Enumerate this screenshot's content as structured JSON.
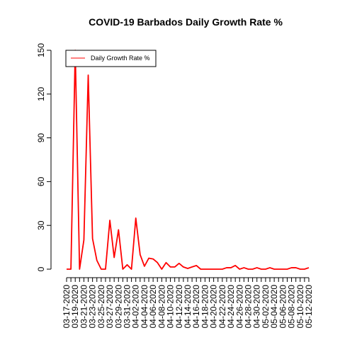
{
  "chart_data": {
    "type": "line",
    "title": "COVID-19 Barbados Daily Growth Rate %",
    "xlabel": "",
    "ylabel": "",
    "ylim": [
      0,
      150
    ],
    "yticks": [
      "0",
      "30",
      "60",
      "90",
      "120",
      "150"
    ],
    "grid": false,
    "legend_position": "top-left",
    "x_tick_labels": [
      "03-17-2020",
      "03-19-2020",
      "03-21-2020",
      "03-23-2020",
      "03-25-2020",
      "03-27-2020",
      "03-29-2020",
      "03-31-2020",
      "04-02-2020",
      "04-04-2020",
      "04-06-2020",
      "04-08-2020",
      "04-10-2020",
      "04-12-2020",
      "04-14-2020",
      "04-16-2020",
      "04-18-2020",
      "04-20-2020",
      "04-22-2020",
      "04-24-2020",
      "04-26-2020",
      "04-28-2020",
      "04-30-2020",
      "05-02-2020",
      "05-04-2020",
      "05-06-2020",
      "05-08-2020",
      "05-10-2020",
      "05-12-2020"
    ],
    "series": [
      {
        "name": "Daily Growth Rate %",
        "color": "#ff0000",
        "x": [
          "03-17-2020",
          "03-18-2020",
          "03-19-2020",
          "03-20-2020",
          "03-21-2020",
          "03-22-2020",
          "03-23-2020",
          "03-24-2020",
          "03-25-2020",
          "03-26-2020",
          "03-27-2020",
          "03-28-2020",
          "03-29-2020",
          "03-30-2020",
          "03-31-2020",
          "04-01-2020",
          "04-02-2020",
          "04-03-2020",
          "04-04-2020",
          "04-05-2020",
          "04-06-2020",
          "04-07-2020",
          "04-08-2020",
          "04-09-2020",
          "04-10-2020",
          "04-11-2020",
          "04-12-2020",
          "04-13-2020",
          "04-14-2020",
          "04-15-2020",
          "04-16-2020",
          "04-17-2020",
          "04-18-2020",
          "04-19-2020",
          "04-20-2020",
          "04-21-2020",
          "04-22-2020",
          "04-23-2020",
          "04-24-2020",
          "04-25-2020",
          "04-26-2020",
          "04-27-2020",
          "04-28-2020",
          "04-29-2020",
          "04-30-2020",
          "05-01-2020",
          "05-02-2020",
          "05-03-2020",
          "05-04-2020",
          "05-05-2020",
          "05-06-2020",
          "05-07-2020",
          "05-08-2020",
          "05-09-2020",
          "05-10-2020",
          "05-11-2020",
          "05-12-2020"
        ],
        "values": [
          0,
          0,
          150,
          0,
          20,
          133,
          21,
          6,
          0,
          0,
          33.5,
          8,
          27,
          0,
          3,
          0,
          35,
          10,
          2,
          7.5,
          7,
          4.5,
          0,
          4.5,
          1.5,
          1.5,
          4,
          1.5,
          0.5,
          1.5,
          2.5,
          0,
          0,
          0,
          0,
          0,
          0,
          1,
          1,
          2.5,
          0,
          1,
          0,
          0,
          1,
          0,
          0,
          1,
          0,
          0,
          0,
          0,
          1,
          1,
          0,
          0,
          1
        ]
      }
    ]
  }
}
